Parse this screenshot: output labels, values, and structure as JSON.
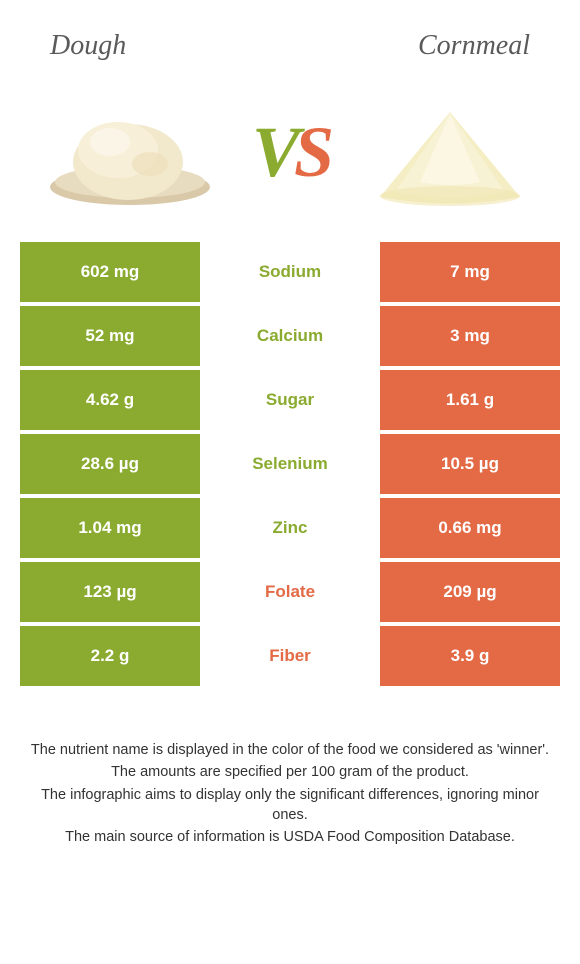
{
  "header": {
    "left_title": "Dough",
    "right_title": "Cornmeal"
  },
  "colors": {
    "left": "#8aab2f",
    "right": "#e36a45",
    "title_text": "#5a5a5a"
  },
  "vs": {
    "v": "V",
    "s": "S"
  },
  "rows": [
    {
      "left": "602 mg",
      "label": "Sodium",
      "right": "7 mg",
      "winner": "left"
    },
    {
      "left": "52 mg",
      "label": "Calcium",
      "right": "3 mg",
      "winner": "left"
    },
    {
      "left": "4.62 g",
      "label": "Sugar",
      "right": "1.61 g",
      "winner": "left"
    },
    {
      "left": "28.6 µg",
      "label": "Selenium",
      "right": "10.5 µg",
      "winner": "left"
    },
    {
      "left": "1.04 mg",
      "label": "Zinc",
      "right": "0.66 mg",
      "winner": "left"
    },
    {
      "left": "123 µg",
      "label": "Folate",
      "right": "209 µg",
      "winner": "right"
    },
    {
      "left": "2.2 g",
      "label": "Fiber",
      "right": "3.9 g",
      "winner": "right"
    }
  ],
  "footer": {
    "line1": "The nutrient name is displayed in the color of the food we considered as 'winner'.",
    "line2": "The amounts are specified per 100 gram of the product.",
    "line3": "The infographic aims to display only the significant differences, ignoring minor ones.",
    "line4": "The main source of information is USDA Food Composition Database."
  }
}
